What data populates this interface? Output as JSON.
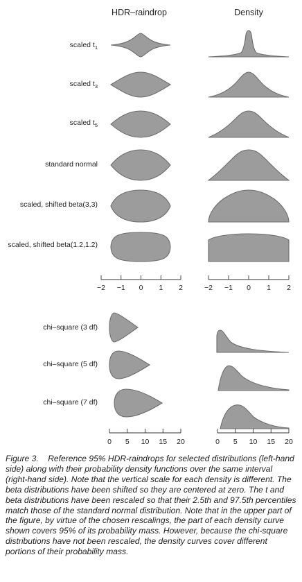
{
  "figure": {
    "column_titles": [
      "HDR–raindrop",
      "Density"
    ],
    "top_axis_ticks": [
      "−2",
      "−1",
      "0",
      "1",
      "2"
    ],
    "bottom_axis_ticks": [
      "0",
      "5",
      "10",
      "15",
      "20"
    ],
    "rows_top": [
      {
        "label_main": "scaled t",
        "label_sub": "1"
      },
      {
        "label_main": "scaled t",
        "label_sub": "3"
      },
      {
        "label_main": "scaled t",
        "label_sub": "5"
      },
      {
        "label_main": "standard normal",
        "label_sub": ""
      },
      {
        "label_main": "scaled, shifted beta(3,3)",
        "label_sub": ""
      },
      {
        "label_main": "scaled, shifted beta(1.2,1.2)",
        "label_sub": ""
      }
    ],
    "rows_bottom": [
      {
        "label_main": "chi–square (3 df)",
        "label_sub": ""
      },
      {
        "label_main": "chi–square (5 df)",
        "label_sub": ""
      },
      {
        "label_main": "chi–square (7 df)",
        "label_sub": ""
      }
    ]
  },
  "caption": {
    "label": "Figure 3.",
    "text": "Reference 95% HDR-raindrops for selected distributions (left-hand side) along with their probability density functions over the same interval (right-hand side). Note that the vertical scale for each density is different. The beta distributions have been shifted so they are centered at zero. The t and beta distributions have been rescaled so that their 2.5th and 97.5th percentiles match those of the standard normal distribution. Note that in the upper part of the figure, by virtue of the chosen rescalings, the part of each density curve shown covers 95% of its probability mass. However, because the chi-square distributions have not been rescaled, the density curves cover different portions of their probability mass."
  },
  "colors": {
    "shape_fill": "#9c9c9c",
    "shape_stroke": "#6e6e6e",
    "text": "#222222"
  }
}
